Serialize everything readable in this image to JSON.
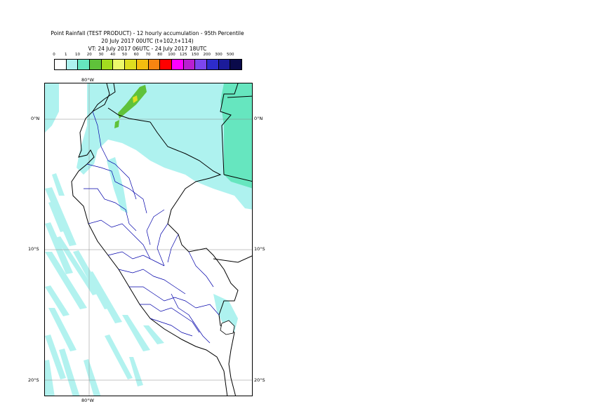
{
  "title": {
    "line1": "Point Rainfall (TEST PRODUCT) - 12 hourly accumulation - 95th Percentile",
    "line2": "20 July 2017 00UTC (t+102,t+114)",
    "line3": "VT: 24 July 2017 06UTC - 24 July 2017 18UTC"
  },
  "legend": {
    "labels": [
      "0",
      "1",
      "10",
      "20",
      "30",
      "40",
      "50",
      "60",
      "70",
      "80",
      "100",
      "125",
      "150",
      "200",
      "300",
      "500"
    ],
    "colors": [
      "#ffffff",
      "#aef2ef",
      "#66e6bf",
      "#5fc23a",
      "#a3dd1f",
      "#ecf86a",
      "#dede20",
      "#f5bd10",
      "#f78511",
      "#ff0000",
      "#ff00ff",
      "#b91fd1",
      "#7c46ee",
      "#2d2ccc",
      "#1b1b9a",
      "#0a0a4a"
    ]
  },
  "map": {
    "lon_labels": [
      "80°W",
      "80°W"
    ],
    "lat_labels": [
      "0°N",
      "10°S",
      "20°S"
    ],
    "lat_labels_right": [
      "0°N",
      "10°S",
      "20°S"
    ],
    "colors": {
      "rain_light": "#aef2ef",
      "rain_medium": "#66e6bf",
      "rain_green": "#5fc23a",
      "rain_yellow": "#dede20",
      "border": "#000000",
      "region_border": "#0000aa",
      "grid": "#888888"
    }
  }
}
